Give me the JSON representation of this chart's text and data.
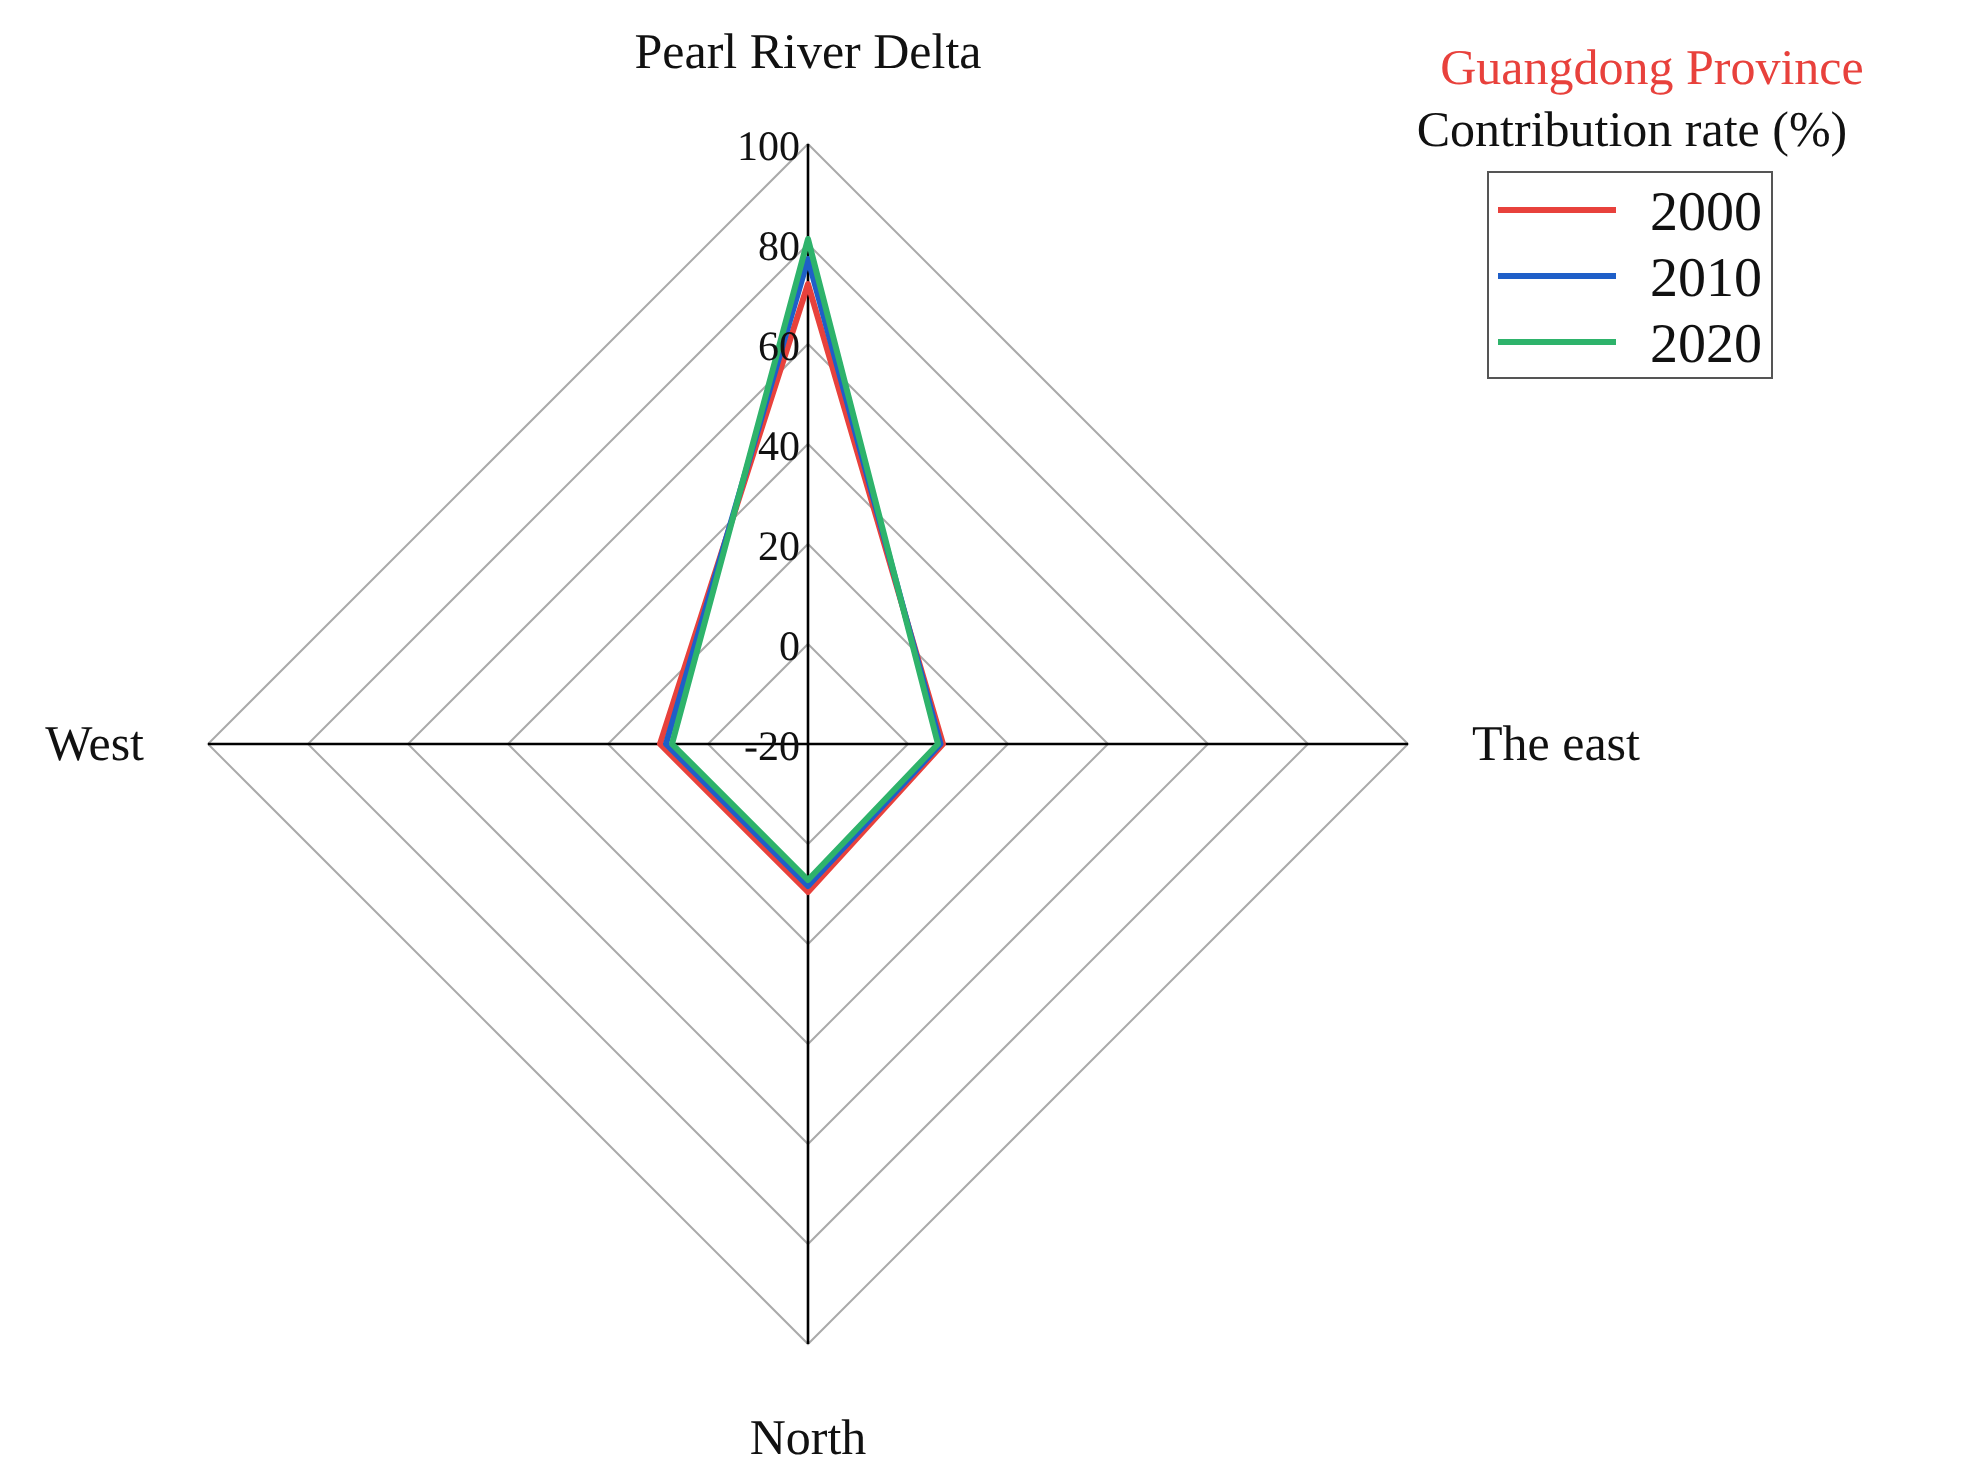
{
  "chart_data": {
    "type": "radar",
    "title": "Guangdong Province",
    "subtitle": "Contribution rate (%)",
    "categories": [
      "Pearl River Delta",
      "The east",
      "North",
      "West"
    ],
    "series": [
      {
        "name": "2000",
        "color": "#e8413c",
        "values": [
          72,
          7,
          9.6,
          9.6
        ]
      },
      {
        "name": "2010",
        "color": "#1f5fc8",
        "values": [
          77,
          6.5,
          8.4,
          8.4
        ]
      },
      {
        "name": "2020",
        "color": "#2eb36b",
        "values": [
          81,
          6,
          7.2,
          7.2
        ]
      }
    ],
    "ylim": [
      -20,
      100
    ],
    "yticks": [
      -20,
      0,
      20,
      40,
      60,
      80,
      100
    ],
    "grid": true,
    "legend": "top right",
    "line_style": "solid",
    "marker": "none"
  }
}
